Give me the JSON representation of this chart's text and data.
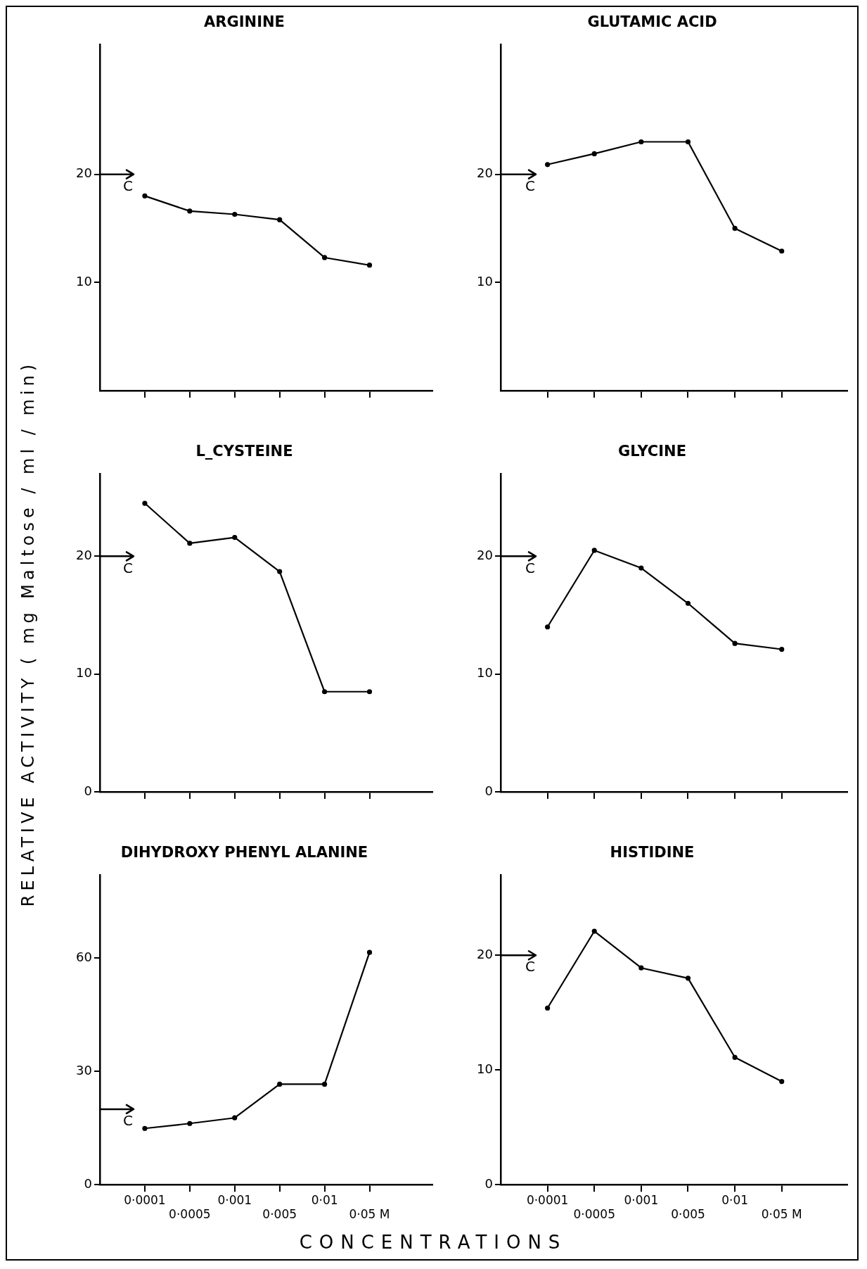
{
  "chart_data": [
    {
      "type": "line",
      "title": "ARGININE",
      "categories": [
        null,
        null,
        null,
        null,
        null,
        null
      ],
      "values": [
        18.0,
        16.6,
        16.3,
        15.8,
        12.3,
        11.6
      ],
      "color": "#000000",
      "ylim": [
        0,
        32
      ],
      "yticks": [
        10,
        20
      ],
      "tick_labels": "y",
      "marker": "circle",
      "line_style": "solid",
      "grid": false,
      "legend": false,
      "ref_lines": [
        {
          "axis": "y",
          "value": 20,
          "label": "C"
        }
      ]
    },
    {
      "type": "line",
      "title": "GLUTAMIC ACID",
      "categories": [
        null,
        null,
        null,
        null,
        null,
        null
      ],
      "values": [
        20.9,
        21.9,
        23.0,
        23.0,
        15.0,
        12.9
      ],
      "color": "#000000",
      "ylim": [
        0,
        32
      ],
      "yticks": [
        10,
        20
      ],
      "tick_labels": "y",
      "marker": "circle",
      "line_style": "solid",
      "grid": false,
      "legend": false,
      "ref_lines": [
        {
          "axis": "y",
          "value": 20,
          "label": "C"
        }
      ]
    },
    {
      "type": "line",
      "title": "L_CYSTEINE",
      "ylabel": "RELATIVE ACTIVITY ( mg Maltose / ml / min)",
      "categories": [
        null,
        null,
        null,
        null,
        null,
        null
      ],
      "values": [
        24.5,
        21.1,
        21.6,
        18.7,
        8.5,
        8.5
      ],
      "color": "#000000",
      "ylim": [
        0,
        27
      ],
      "yticks": [
        0,
        10,
        20
      ],
      "tick_labels": "y",
      "marker": "circle",
      "line_style": "solid",
      "grid": false,
      "legend": false,
      "ref_lines": [
        {
          "axis": "y",
          "value": 20,
          "label": "C"
        }
      ]
    },
    {
      "type": "line",
      "title": "GLYCINE",
      "categories": [
        null,
        null,
        null,
        null,
        null,
        null
      ],
      "values": [
        14.0,
        20.5,
        19.0,
        16.0,
        12.6,
        12.1
      ],
      "color": "#000000",
      "ylim": [
        0,
        27
      ],
      "yticks": [
        0,
        10,
        20
      ],
      "tick_labels": "y",
      "marker": "circle",
      "line_style": "solid",
      "grid": false,
      "legend": false,
      "ref_lines": [
        {
          "axis": "y",
          "value": 20,
          "label": "C"
        }
      ]
    },
    {
      "type": "line",
      "title": "DIHYDROXY PHENYL ALANINE",
      "xlabel": "CONCENTRATIONS",
      "categories": [
        "0·0001",
        "0·0005",
        "0·001",
        "0·005",
        "0·01",
        "0·05 M"
      ],
      "values": [
        14.9,
        16.2,
        17.7,
        26.6,
        26.6,
        61.5
      ],
      "color": "#000000",
      "ylim": [
        0,
        82
      ],
      "yticks": [
        0,
        30,
        60
      ],
      "marker": "circle",
      "line_style": "solid",
      "grid": false,
      "legend": false,
      "ref_lines": [
        {
          "axis": "y",
          "value": 20,
          "label": "C"
        }
      ]
    },
    {
      "type": "line",
      "title": "HISTIDINE",
      "categories": [
        "0·0001",
        "0·0005",
        "0·001",
        "0·005",
        "0·01",
        "0·05 M"
      ],
      "values": [
        15.4,
        22.1,
        18.9,
        18.0,
        11.1,
        9.0
      ],
      "color": "#000000",
      "ylim": [
        0,
        27
      ],
      "yticks": [
        0,
        10,
        20
      ],
      "marker": "circle",
      "line_style": "solid",
      "grid": false,
      "legend": false,
      "ref_lines": [
        {
          "axis": "y",
          "value": 20,
          "label": "C"
        }
      ]
    }
  ]
}
